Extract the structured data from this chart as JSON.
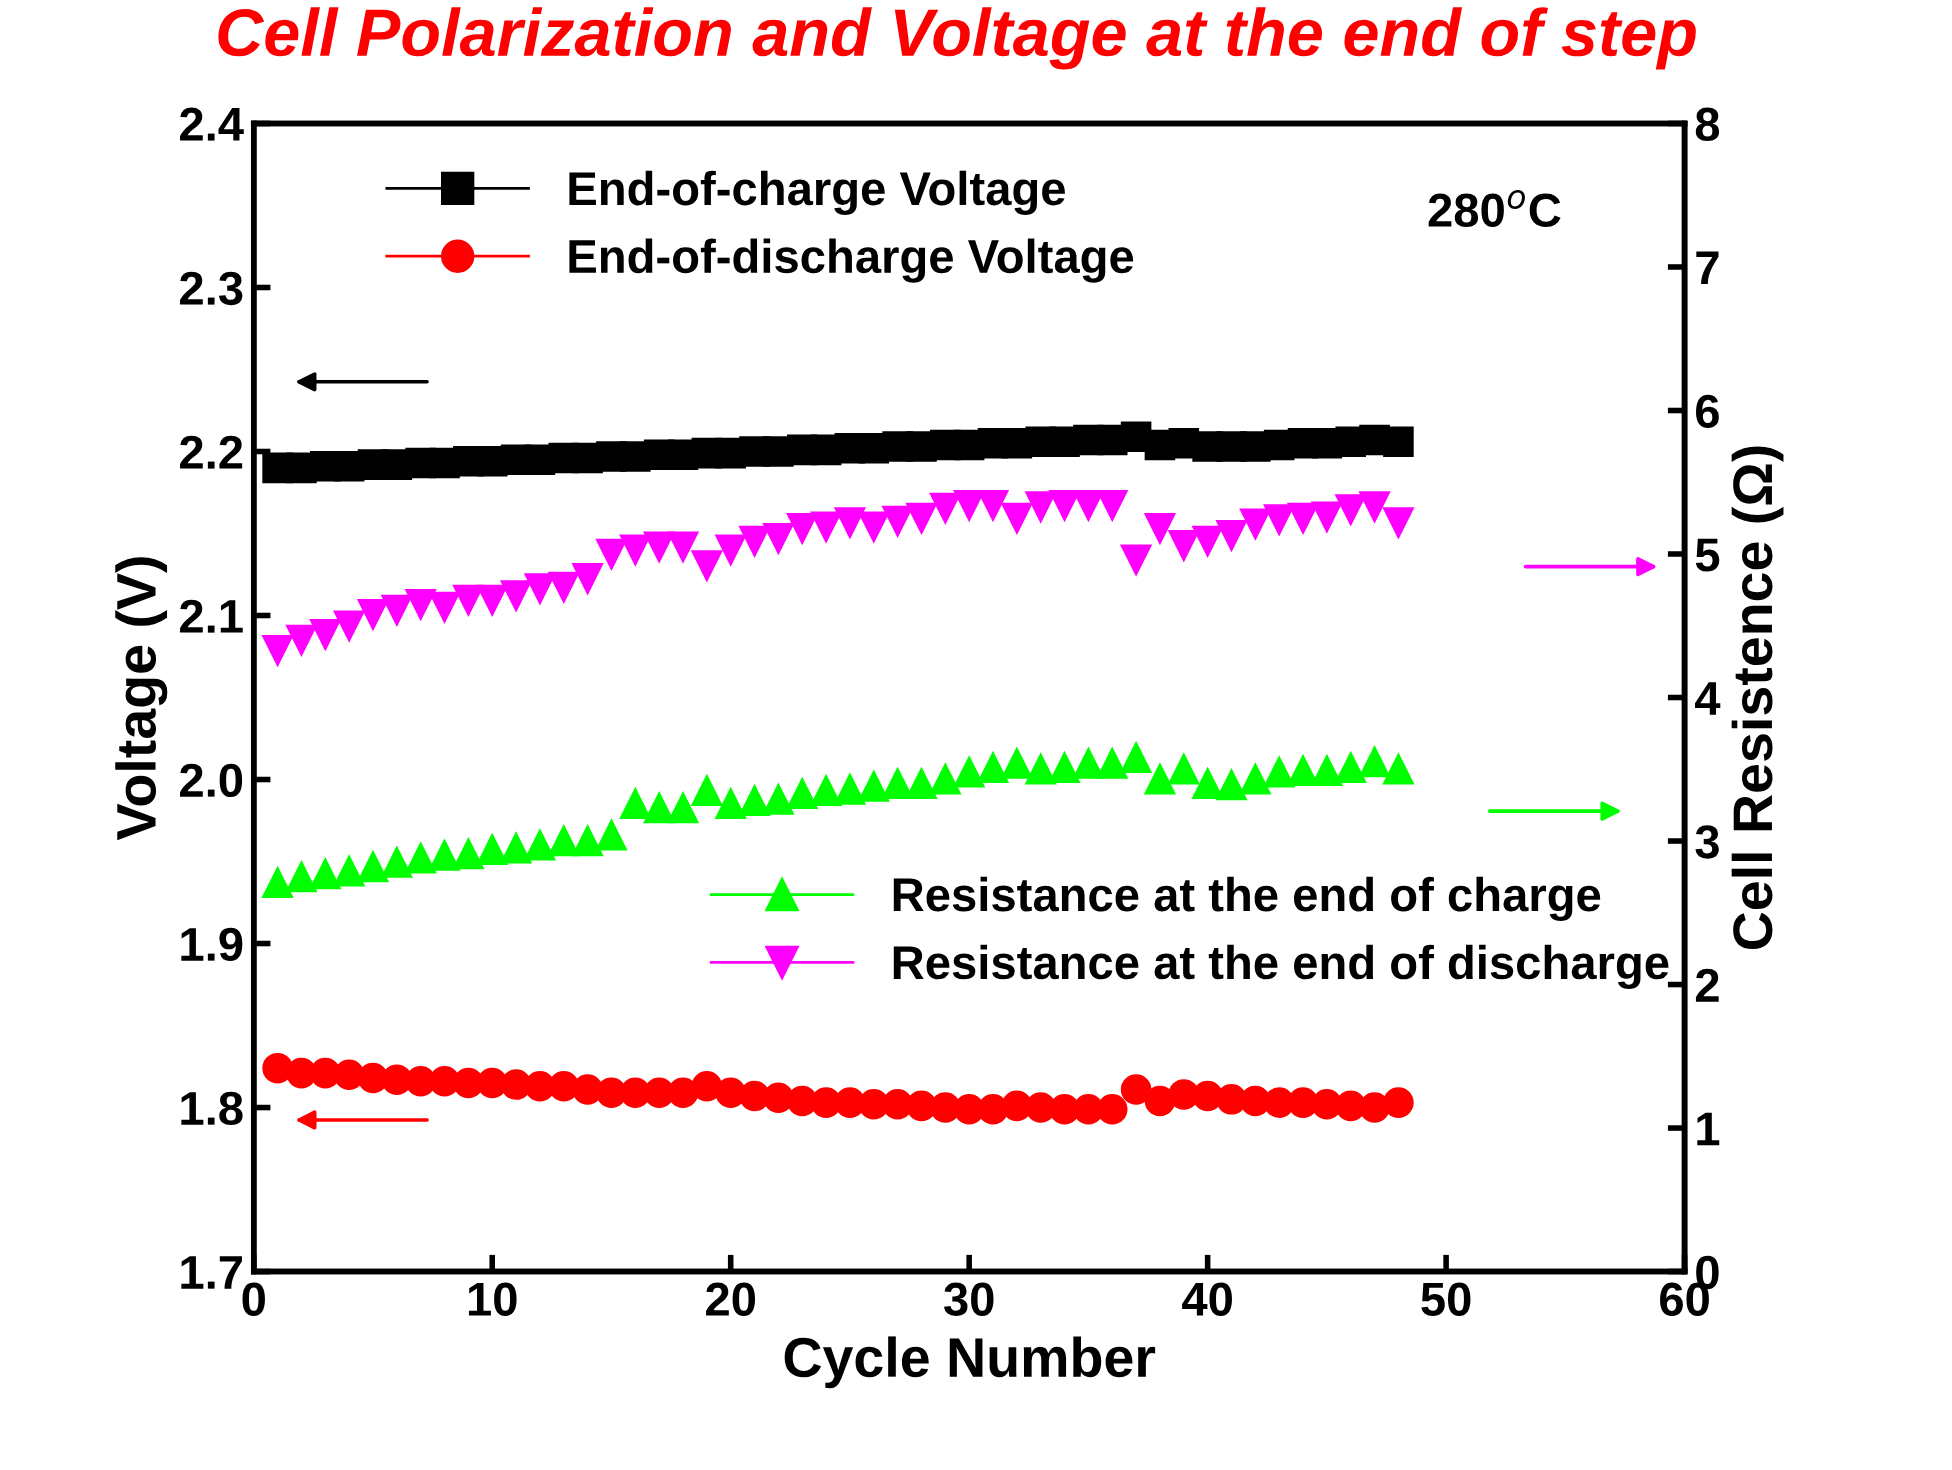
{
  "chart_data": {
    "type": "scatter",
    "title": "Cell Polarization and Voltage at the end of step",
    "xlabel": "Cycle Number",
    "ylabel": "Voltage (V)",
    "y2label": "Cell Resistence (Ω)",
    "annotations": [
      "280$^{o}$C"
    ],
    "x": [
      1,
      2,
      3,
      4,
      5,
      6,
      7,
      8,
      9,
      10,
      11,
      12,
      13,
      14,
      15,
      16,
      17,
      18,
      19,
      20,
      21,
      22,
      23,
      24,
      25,
      26,
      27,
      28,
      29,
      30,
      31,
      32,
      33,
      34,
      35,
      36,
      37,
      38,
      39,
      40,
      41,
      42,
      43,
      44,
      45,
      46,
      47,
      48
    ],
    "xlim": [
      0,
      60
    ],
    "xticks": [
      0,
      10,
      20,
      30,
      40,
      50,
      60
    ],
    "ylim": [
      1.7,
      2.4
    ],
    "yticks": [
      1.7,
      1.8,
      1.9,
      {
        "value": 2.0,
        "label": "2.0"
      },
      2.1,
      2.2,
      2.3,
      2.4
    ],
    "y2lim": [
      0,
      8
    ],
    "y2ticks": [
      0,
      1,
      2,
      3,
      4,
      5,
      6,
      7,
      8
    ],
    "legend": "top left",
    "grid": false,
    "series": [
      {
        "name": "End-of-charge Voltage",
        "color": "#000000",
        "marker": "square",
        "values": [
          2.19,
          2.19,
          2.191,
          2.191,
          2.192,
          2.192,
          2.193,
          2.193,
          2.194,
          2.194,
          2.195,
          2.195,
          2.196,
          2.196,
          2.197,
          2.197,
          2.198,
          2.198,
          2.199,
          2.199,
          2.2,
          2.2,
          2.201,
          2.201,
          2.202,
          2.202,
          2.203,
          2.203,
          2.204,
          2.204,
          2.205,
          2.205,
          2.206,
          2.206,
          2.207,
          2.207,
          2.209,
          2.204,
          2.205,
          2.203,
          2.203,
          2.203,
          2.204,
          2.205,
          2.205,
          2.206,
          2.207,
          2.206
        ]
      },
      {
        "name": "End-of-discharge Voltage",
        "color": "#ff0000",
        "marker": "circle",
        "values": [
          1.824,
          1.821,
          1.821,
          1.82,
          1.818,
          1.817,
          1.816,
          1.816,
          1.815,
          1.815,
          1.814,
          1.813,
          1.813,
          1.811,
          1.809,
          1.809,
          1.809,
          1.809,
          1.813,
          1.809,
          1.807,
          1.806,
          1.804,
          1.803,
          1.803,
          1.802,
          1.802,
          1.801,
          1.8,
          1.799,
          1.799,
          1.801,
          1.8,
          1.799,
          1.799,
          1.799,
          1.811,
          1.804,
          1.808,
          1.807,
          1.805,
          1.804,
          1.803,
          1.803,
          1.802,
          1.801,
          1.8,
          1.803
        ]
      },
      {
        "name": "Resistance at the end of charge",
        "color": "#00ff00",
        "marker": "triangle",
        "axis": "y2",
        "values": [
          2.71,
          2.75,
          2.77,
          2.79,
          2.82,
          2.85,
          2.88,
          2.9,
          2.91,
          2.94,
          2.95,
          2.97,
          3.0,
          3.0,
          3.04,
          3.26,
          3.23,
          3.23,
          3.35,
          3.26,
          3.28,
          3.29,
          3.33,
          3.35,
          3.36,
          3.38,
          3.4,
          3.4,
          3.43,
          3.48,
          3.51,
          3.54,
          3.5,
          3.51,
          3.54,
          3.54,
          3.58,
          3.43,
          3.5,
          3.4,
          3.39,
          3.43,
          3.48,
          3.49,
          3.49,
          3.51,
          3.55,
          3.5
        ]
      },
      {
        "name": "Resistance at the end of discharge",
        "color": "#ff00ff",
        "marker": "triangle_down",
        "axis": "y2",
        "values": [
          4.33,
          4.4,
          4.44,
          4.5,
          4.58,
          4.61,
          4.65,
          4.63,
          4.68,
          4.68,
          4.71,
          4.76,
          4.77,
          4.83,
          5.0,
          5.03,
          5.05,
          5.05,
          4.92,
          5.03,
          5.09,
          5.11,
          5.18,
          5.19,
          5.22,
          5.19,
          5.23,
          5.25,
          5.32,
          5.34,
          5.34,
          5.25,
          5.33,
          5.34,
          5.34,
          5.34,
          4.96,
          5.18,
          5.06,
          5.09,
          5.13,
          5.21,
          5.24,
          5.25,
          5.26,
          5.31,
          5.33,
          5.22
        ]
      }
    ]
  }
}
